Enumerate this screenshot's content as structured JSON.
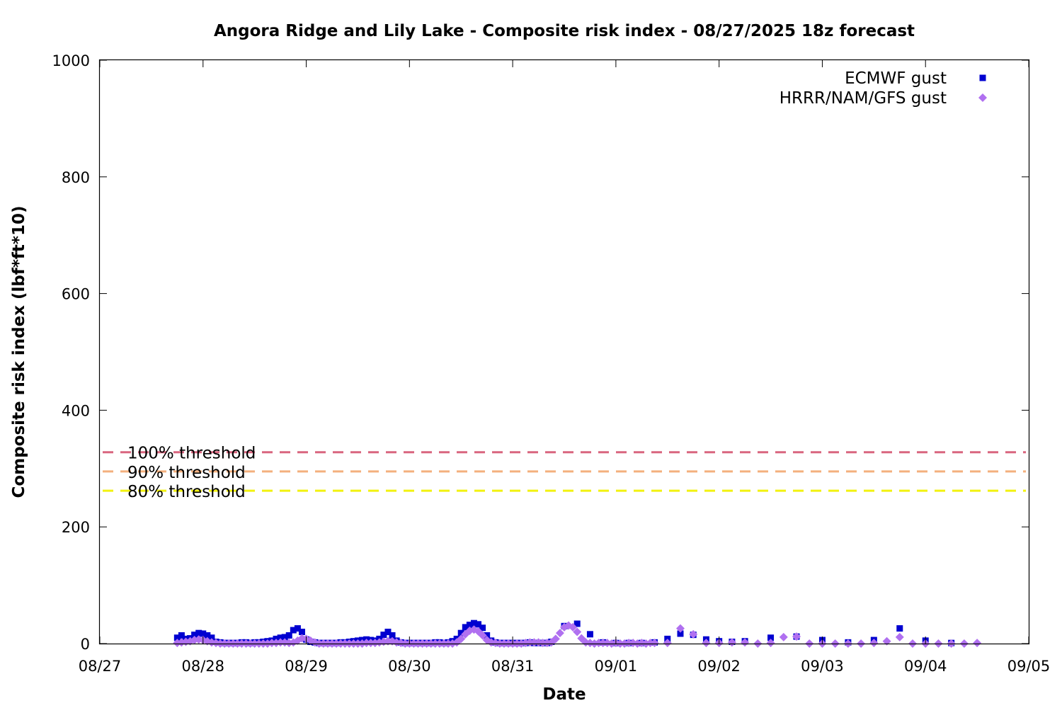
{
  "chart_data": {
    "type": "scatter",
    "title": "Angora Ridge and Lily Lake - Composite risk index - 08/27/2025 18z forecast",
    "xlabel": "Date",
    "ylabel": "Composite risk index (lbf*ft*10)",
    "ylim": [
      0,
      1000
    ],
    "xlim": [
      "08/27",
      "09/05"
    ],
    "xticks": [
      "08/27",
      "08/28",
      "08/29",
      "08/30",
      "08/31",
      "09/01",
      "09/02",
      "09/03",
      "09/04",
      "09/05"
    ],
    "yticks": [
      "0",
      "200",
      "400",
      "600",
      "800",
      "1000"
    ],
    "legend_position": "top-right",
    "grid": false,
    "thresholds": [
      {
        "label": "100% threshold",
        "value": 328,
        "color": "#d9667f"
      },
      {
        "label": "90% threshold",
        "value": 295,
        "color": "#f4b07e"
      },
      {
        "label": "80% threshold",
        "value": 262,
        "color": "#f2f20f"
      }
    ],
    "series": [
      {
        "name": "ECMWF gust",
        "color": "#0000d0",
        "marker": "square",
        "points": [
          [
            "08/27 18:00",
            10
          ],
          [
            "08/27 19:00",
            14
          ],
          [
            "08/27 20:00",
            8
          ],
          [
            "08/27 21:00",
            9
          ],
          [
            "08/27 22:00",
            15
          ],
          [
            "08/27 23:00",
            18
          ],
          [
            "08/28 00:00",
            17
          ],
          [
            "08/28 01:00",
            14
          ],
          [
            "08/28 02:00",
            10
          ],
          [
            "08/28 03:00",
            3
          ],
          [
            "08/28 04:00",
            2
          ],
          [
            "08/28 05:00",
            1
          ],
          [
            "08/28 06:00",
            1
          ],
          [
            "08/28 07:00",
            1
          ],
          [
            "08/28 08:00",
            1
          ],
          [
            "08/28 09:00",
            2
          ],
          [
            "08/28 10:00",
            2
          ],
          [
            "08/28 11:00",
            1
          ],
          [
            "08/28 12:00",
            2
          ],
          [
            "08/28 13:00",
            2
          ],
          [
            "08/28 14:00",
            3
          ],
          [
            "08/28 15:00",
            4
          ],
          [
            "08/28 16:00",
            5
          ],
          [
            "08/28 17:00",
            8
          ],
          [
            "08/28 18:00",
            10
          ],
          [
            "08/28 19:00",
            11
          ],
          [
            "08/28 20:00",
            14
          ],
          [
            "08/28 21:00",
            23
          ],
          [
            "08/28 22:00",
            26
          ],
          [
            "08/28 23:00",
            20
          ],
          [
            "08/29 00:00",
            7
          ],
          [
            "08/29 01:00",
            3
          ],
          [
            "08/29 02:00",
            2
          ],
          [
            "08/29 03:00",
            1
          ],
          [
            "08/29 04:00",
            1
          ],
          [
            "08/29 05:00",
            1
          ],
          [
            "08/29 06:00",
            1
          ],
          [
            "08/29 07:00",
            1
          ],
          [
            "08/29 08:00",
            2
          ],
          [
            "08/29 09:00",
            2
          ],
          [
            "08/29 10:00",
            3
          ],
          [
            "08/29 11:00",
            4
          ],
          [
            "08/29 12:00",
            5
          ],
          [
            "08/29 13:00",
            6
          ],
          [
            "08/29 14:00",
            7
          ],
          [
            "08/29 15:00",
            6
          ],
          [
            "08/29 16:00",
            5
          ],
          [
            "08/29 17:00",
            8
          ],
          [
            "08/29 18:00",
            15
          ],
          [
            "08/29 19:00",
            20
          ],
          [
            "08/29 20:00",
            14
          ],
          [
            "08/29 21:00",
            5
          ],
          [
            "08/29 22:00",
            2
          ],
          [
            "08/29 23:00",
            1
          ],
          [
            "08/30 00:00",
            1
          ],
          [
            "08/30 01:00",
            1
          ],
          [
            "08/30 02:00",
            1
          ],
          [
            "08/30 03:00",
            1
          ],
          [
            "08/30 04:00",
            1
          ],
          [
            "08/30 05:00",
            1
          ],
          [
            "08/30 06:00",
            2
          ],
          [
            "08/30 07:00",
            2
          ],
          [
            "08/30 08:00",
            1
          ],
          [
            "08/30 09:00",
            2
          ],
          [
            "08/30 10:00",
            4
          ],
          [
            "08/30 11:00",
            8
          ],
          [
            "08/30 12:00",
            18
          ],
          [
            "08/30 13:00",
            28
          ],
          [
            "08/30 14:00",
            32
          ],
          [
            "08/30 15:00",
            35
          ],
          [
            "08/30 16:00",
            33
          ],
          [
            "08/30 17:00",
            27
          ],
          [
            "08/30 18:00",
            14
          ],
          [
            "08/30 19:00",
            5
          ],
          [
            "08/30 20:00",
            2
          ],
          [
            "08/30 21:00",
            1
          ],
          [
            "08/30 22:00",
            1
          ],
          [
            "08/30 23:00",
            1
          ],
          [
            "08/31 00:00",
            1
          ],
          [
            "08/31 01:00",
            1
          ],
          [
            "08/31 02:00",
            1
          ],
          [
            "08/31 03:00",
            1
          ],
          [
            "08/31 04:00",
            2
          ],
          [
            "08/31 05:00",
            1
          ],
          [
            "08/31 06:00",
            1
          ],
          [
            "08/31 07:00",
            1
          ],
          [
            "08/31 08:00",
            1
          ],
          [
            "08/31 09:00",
            3
          ],
          [
            "08/31 12:00",
            30
          ],
          [
            "08/31 15:00",
            34
          ],
          [
            "08/31 18:00",
            16
          ],
          [
            "08/31 21:00",
            2
          ],
          [
            "09/01 00:00",
            1
          ],
          [
            "09/01 03:00",
            1
          ],
          [
            "09/01 06:00",
            1
          ],
          [
            "09/01 09:00",
            2
          ],
          [
            "09/01 12:00",
            8
          ],
          [
            "09/01 15:00",
            17
          ],
          [
            "09/01 18:00",
            15
          ],
          [
            "09/01 21:00",
            7
          ],
          [
            "09/02 00:00",
            4
          ],
          [
            "09/02 03:00",
            3
          ],
          [
            "09/02 06:00",
            4
          ],
          [
            "09/02 12:00",
            10
          ],
          [
            "09/02 18:00",
            12
          ],
          [
            "09/03 00:00",
            6
          ],
          [
            "09/03 06:00",
            2
          ],
          [
            "09/03 12:00",
            6
          ],
          [
            "09/03 18:00",
            26
          ],
          [
            "09/04 00:00",
            5
          ],
          [
            "09/04 06:00",
            1
          ]
        ]
      },
      {
        "name": "HRRR/NAM/GFS gust",
        "color": "#b070f0",
        "marker": "diamond",
        "points": [
          [
            "08/27 18:00",
            1
          ],
          [
            "08/27 19:00",
            2
          ],
          [
            "08/27 20:00",
            3
          ],
          [
            "08/27 21:00",
            4
          ],
          [
            "08/27 22:00",
            6
          ],
          [
            "08/27 23:00",
            7
          ],
          [
            "08/28 00:00",
            6
          ],
          [
            "08/28 01:00",
            4
          ],
          [
            "08/28 02:00",
            2
          ],
          [
            "08/28 03:00",
            1
          ],
          [
            "08/28 04:00",
            0
          ],
          [
            "08/28 05:00",
            0
          ],
          [
            "08/28 06:00",
            0
          ],
          [
            "08/28 07:00",
            0
          ],
          [
            "08/28 08:00",
            0
          ],
          [
            "08/28 09:00",
            0
          ],
          [
            "08/28 10:00",
            0
          ],
          [
            "08/28 11:00",
            0
          ],
          [
            "08/28 12:00",
            0
          ],
          [
            "08/28 13:00",
            0
          ],
          [
            "08/28 14:00",
            0
          ],
          [
            "08/28 15:00",
            0
          ],
          [
            "08/28 16:00",
            1
          ],
          [
            "08/28 17:00",
            1
          ],
          [
            "08/28 18:00",
            2
          ],
          [
            "08/28 19:00",
            2
          ],
          [
            "08/28 20:00",
            1
          ],
          [
            "08/28 21:00",
            2
          ],
          [
            "08/28 22:00",
            5
          ],
          [
            "08/28 23:00",
            9
          ],
          [
            "08/29 00:00",
            8
          ],
          [
            "08/29 01:00",
            5
          ],
          [
            "08/29 02:00",
            2
          ],
          [
            "08/29 03:00",
            0
          ],
          [
            "08/29 04:00",
            0
          ],
          [
            "08/29 05:00",
            0
          ],
          [
            "08/29 06:00",
            0
          ],
          [
            "08/29 07:00",
            0
          ],
          [
            "08/29 08:00",
            0
          ],
          [
            "08/29 09:00",
            0
          ],
          [
            "08/29 10:00",
            0
          ],
          [
            "08/29 11:00",
            0
          ],
          [
            "08/29 12:00",
            0
          ],
          [
            "08/29 13:00",
            0
          ],
          [
            "08/29 14:00",
            1
          ],
          [
            "08/29 15:00",
            1
          ],
          [
            "08/29 16:00",
            1
          ],
          [
            "08/29 17:00",
            2
          ],
          [
            "08/29 18:00",
            3
          ],
          [
            "08/29 19:00",
            4
          ],
          [
            "08/29 20:00",
            4
          ],
          [
            "08/29 21:00",
            2
          ],
          [
            "08/29 22:00",
            1
          ],
          [
            "08/29 23:00",
            0
          ],
          [
            "08/30 00:00",
            0
          ],
          [
            "08/30 01:00",
            0
          ],
          [
            "08/30 02:00",
            0
          ],
          [
            "08/30 03:00",
            0
          ],
          [
            "08/30 04:00",
            0
          ],
          [
            "08/30 05:00",
            0
          ],
          [
            "08/30 06:00",
            0
          ],
          [
            "08/30 07:00",
            0
          ],
          [
            "08/30 08:00",
            0
          ],
          [
            "08/30 09:00",
            0
          ],
          [
            "08/30 10:00",
            0
          ],
          [
            "08/30 11:00",
            2
          ],
          [
            "08/30 12:00",
            8
          ],
          [
            "08/30 13:00",
            16
          ],
          [
            "08/30 14:00",
            22
          ],
          [
            "08/30 15:00",
            24
          ],
          [
            "08/30 16:00",
            21
          ],
          [
            "08/30 17:00",
            14
          ],
          [
            "08/30 18:00",
            6
          ],
          [
            "08/30 19:00",
            2
          ],
          [
            "08/30 20:00",
            1
          ],
          [
            "08/30 21:00",
            0
          ],
          [
            "08/30 22:00",
            0
          ],
          [
            "08/30 23:00",
            0
          ],
          [
            "08/31 00:00",
            0
          ],
          [
            "08/31 01:00",
            0
          ],
          [
            "08/31 02:00",
            0
          ],
          [
            "08/31 03:00",
            1
          ],
          [
            "08/31 04:00",
            2
          ],
          [
            "08/31 05:00",
            2
          ],
          [
            "08/31 06:00",
            2
          ],
          [
            "08/31 07:00",
            1
          ],
          [
            "08/31 08:00",
            1
          ],
          [
            "08/31 09:00",
            2
          ],
          [
            "08/31 10:00",
            8
          ],
          [
            "08/31 11:00",
            18
          ],
          [
            "08/31 12:00",
            28
          ],
          [
            "08/31 13:00",
            31
          ],
          [
            "08/31 14:00",
            28
          ],
          [
            "08/31 15:00",
            20
          ],
          [
            "08/31 16:00",
            9
          ],
          [
            "08/31 17:00",
            2
          ],
          [
            "08/31 18:00",
            1
          ],
          [
            "08/31 19:00",
            0
          ],
          [
            "08/31 20:00",
            1
          ],
          [
            "08/31 21:00",
            1
          ],
          [
            "08/31 22:00",
            1
          ],
          [
            "08/31 23:00",
            0
          ],
          [
            "09/01 00:00",
            1
          ],
          [
            "09/01 01:00",
            0
          ],
          [
            "09/01 02:00",
            0
          ],
          [
            "09/01 03:00",
            1
          ],
          [
            "09/01 04:00",
            1
          ],
          [
            "09/01 05:00",
            0
          ],
          [
            "09/01 06:00",
            1
          ],
          [
            "09/01 07:00",
            0
          ],
          [
            "09/01 08:00",
            1
          ],
          [
            "09/01 09:00",
            1
          ],
          [
            "09/01 12:00",
            1
          ],
          [
            "09/01 15:00",
            26
          ],
          [
            "09/01 18:00",
            16
          ],
          [
            "09/01 21:00",
            1
          ],
          [
            "09/02 00:00",
            1
          ],
          [
            "09/02 03:00",
            2
          ],
          [
            "09/02 06:00",
            2
          ],
          [
            "09/02 09:00",
            0
          ],
          [
            "09/02 12:00",
            1
          ],
          [
            "09/02 15:00",
            11
          ],
          [
            "09/02 18:00",
            12
          ],
          [
            "09/02 21:00",
            0
          ],
          [
            "09/03 00:00",
            0
          ],
          [
            "09/03 03:00",
            0
          ],
          [
            "09/03 06:00",
            0
          ],
          [
            "09/03 09:00",
            0
          ],
          [
            "09/03 12:00",
            1
          ],
          [
            "09/03 15:00",
            4
          ],
          [
            "09/03 18:00",
            11
          ],
          [
            "09/03 21:00",
            0
          ],
          [
            "09/04 00:00",
            0
          ],
          [
            "09/04 03:00",
            0
          ],
          [
            "09/04 06:00",
            0
          ],
          [
            "09/04 09:00",
            0
          ],
          [
            "09/04 12:00",
            1
          ]
        ]
      }
    ]
  }
}
